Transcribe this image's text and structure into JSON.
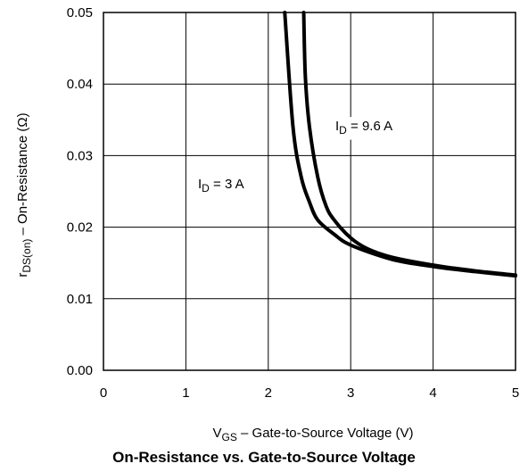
{
  "chart_data": {
    "type": "line",
    "title": "On-Resistance vs. Gate-to-Source Voltage",
    "xlabel": {
      "main": "V",
      "sub": "GS",
      "rest": " – Gate-to-Source Voltage (V)"
    },
    "ylabel": {
      "main": "r",
      "sub": "DS(on)",
      "rest": "  –  On-Resistance (Ω)"
    },
    "xlim": [
      0,
      5
    ],
    "ylim": [
      0,
      0.05
    ],
    "xticks": [
      "0",
      "1",
      "2",
      "3",
      "4",
      "5"
    ],
    "yticks": [
      "0.00",
      "0.01",
      "0.02",
      "0.03",
      "0.04",
      "0.05"
    ],
    "grid": true,
    "series": [
      {
        "name": "I_D = 3 A",
        "label": {
          "main": "I",
          "sub": "D",
          "rest": " = 3 A"
        },
        "x": [
          2.2,
          2.3,
          2.4,
          2.5,
          2.6,
          2.8,
          3.0,
          3.5,
          4.0,
          4.5,
          5.0
        ],
        "y": [
          0.05,
          0.034,
          0.027,
          0.0235,
          0.021,
          0.019,
          0.0175,
          0.0155,
          0.0145,
          0.0138,
          0.0132
        ]
      },
      {
        "name": "I_D = 9.6 A",
        "label": {
          "main": "I",
          "sub": "D",
          "rest": " = 9.6 A"
        },
        "x": [
          2.43,
          2.45,
          2.5,
          2.6,
          2.7,
          2.8,
          3.0,
          3.2,
          3.5,
          4.0,
          4.5,
          5.0
        ],
        "y": [
          0.05,
          0.041,
          0.034,
          0.027,
          0.023,
          0.021,
          0.0185,
          0.017,
          0.0158,
          0.0147,
          0.0139,
          0.0133
        ]
      }
    ]
  }
}
